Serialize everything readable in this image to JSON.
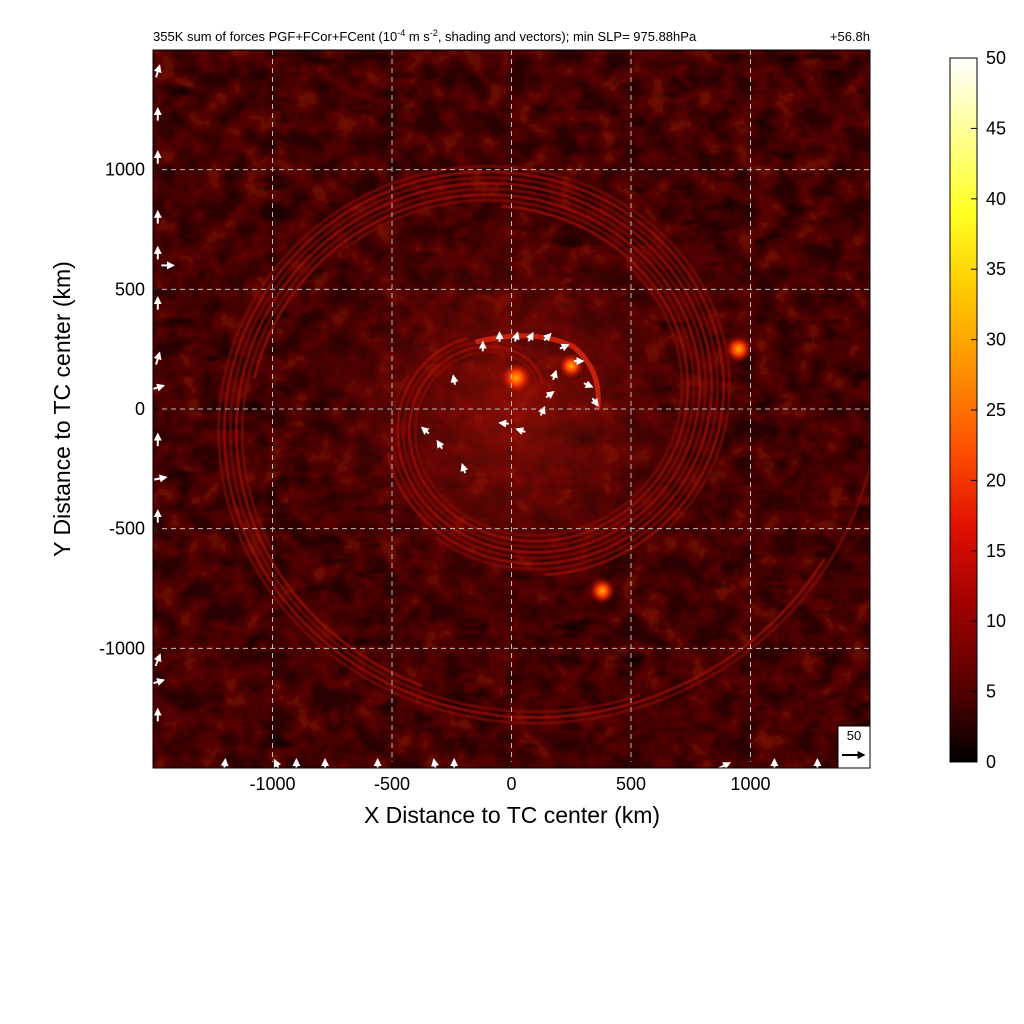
{
  "chart_data": {
    "type": "heatmap",
    "title": "355K sum of forces PGF+FCor+FCent (10",
    "title_exp": "-4",
    "title_mid": " m s",
    "title_exp2": "-2",
    "title_tail": ", shading and vectors); min SLP= 975.88hPa",
    "time_label": "+56.8h",
    "xlabel": "X Distance to TC center (km)",
    "ylabel": "Y Distance to TC center (km)",
    "xlim": [
      -1500,
      1500
    ],
    "ylim": [
      -1500,
      1500
    ],
    "xticks": [
      -1000,
      -500,
      0,
      500,
      1000
    ],
    "yticks": [
      -1000,
      -500,
      0,
      500,
      1000
    ],
    "grid": true,
    "grid_style": "dashed",
    "colorbar": {
      "min": 0,
      "max": 50,
      "ticks": [
        0,
        5,
        10,
        15,
        20,
        25,
        30,
        35,
        40,
        45,
        50
      ],
      "colormap": "hot",
      "colors": [
        "#000000",
        "#5a0000",
        "#a00000",
        "#e01000",
        "#ff5000",
        "#ff9000",
        "#ffc800",
        "#ffff20",
        "#ffff90",
        "#ffffff"
      ]
    },
    "reference_vector": {
      "value": 50,
      "label": "50"
    },
    "features": [
      {
        "label": "TC center maximum",
        "x": 20,
        "y": 130,
        "value": 25
      },
      {
        "label": "eyewall arc",
        "x": 250,
        "y": 180,
        "value": 18
      },
      {
        "label": "isolated maximum NE",
        "x": 950,
        "y": 250,
        "value": 20
      },
      {
        "label": "isolated maximum SE",
        "x": 380,
        "y": -760,
        "value": 18
      }
    ],
    "vectors_inner": [
      [
        -120,
        260,
        0,
        1
      ],
      [
        -50,
        300,
        0,
        1
      ],
      [
        20,
        300,
        0.3,
        1
      ],
      [
        80,
        300,
        0.5,
        0.9
      ],
      [
        150,
        300,
        0.7,
        0.7
      ],
      [
        220,
        260,
        0.9,
        0.4
      ],
      [
        280,
        200,
        1,
        0
      ],
      [
        320,
        100,
        0.9,
        -0.4
      ],
      [
        350,
        30,
        0.6,
        -0.8
      ],
      [
        -240,
        120,
        -0.2,
        1
      ],
      [
        -300,
        -150,
        -0.5,
        0.8
      ],
      [
        -200,
        -250,
        -0.3,
        0.9
      ],
      [
        -360,
        -90,
        -0.7,
        0.6
      ],
      [
        40,
        -90,
        -0.9,
        0.3
      ],
      [
        -30,
        -60,
        -1,
        0.1
      ],
      [
        130,
        -10,
        0.4,
        0.9
      ],
      [
        160,
        60,
        0.8,
        0.6
      ],
      [
        180,
        140,
        0.3,
        0.9
      ]
    ],
    "vectors_edge": [
      [
        -1480,
        1410,
        0.3,
        1
      ],
      [
        -1480,
        1230,
        0,
        1
      ],
      [
        -1480,
        1050,
        0,
        1
      ],
      [
        -1480,
        800,
        0,
        1
      ],
      [
        -1480,
        650,
        0,
        1
      ],
      [
        -1440,
        600,
        1,
        0
      ],
      [
        -1480,
        440,
        0,
        1
      ],
      [
        -1480,
        210,
        0.3,
        1
      ],
      [
        -1480,
        90,
        1,
        0.3
      ],
      [
        -1480,
        -130,
        0,
        1
      ],
      [
        -1470,
        -290,
        1,
        0.2
      ],
      [
        -1480,
        -450,
        0,
        1
      ],
      [
        -1480,
        -1050,
        0.4,
        1
      ],
      [
        -1480,
        -1140,
        1,
        0.3
      ],
      [
        -1480,
        -1280,
        0,
        1
      ],
      [
        -1200,
        -1490,
        0.1,
        1
      ],
      [
        -980,
        -1490,
        -0.5,
        1
      ],
      [
        -900,
        -1490,
        0,
        1
      ],
      [
        -780,
        -1490,
        0,
        1
      ],
      [
        -560,
        -1490,
        0,
        1
      ],
      [
        -320,
        -1490,
        -0.2,
        1
      ],
      [
        -240,
        -1490,
        0,
        1
      ],
      [
        890,
        -1490,
        1,
        0.5
      ],
      [
        1100,
        -1490,
        0,
        1
      ],
      [
        1280,
        -1490,
        0,
        1
      ]
    ]
  }
}
